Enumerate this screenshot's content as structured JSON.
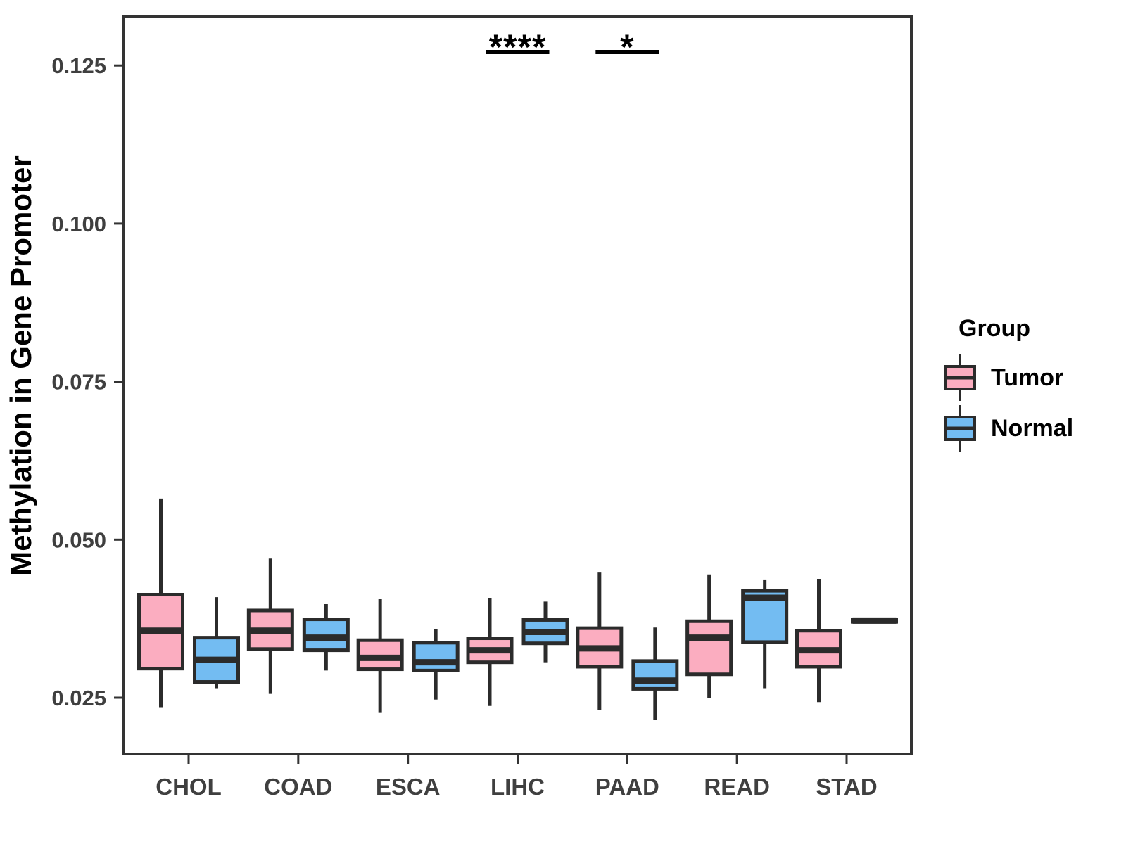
{
  "chart_data": {
    "type": "boxplot",
    "title": "",
    "xlabel": "",
    "ylabel": "Methylation in Gene Promoter",
    "legend_title": "Group",
    "legend_position": "right",
    "grid": false,
    "categories": [
      "CHOL",
      "COAD",
      "ESCA",
      "LIHC",
      "PAAD",
      "READ",
      "STAD"
    ],
    "y_ticks": [
      "0.025",
      "0.050",
      "0.075",
      "0.100",
      "0.125"
    ],
    "y_tick_values": [
      0.025,
      0.05,
      0.075,
      0.1,
      0.125
    ],
    "ylim": [
      0.0161,
      0.1327
    ],
    "groups": [
      {
        "name": "Tumor",
        "color": "#fbadc0"
      },
      {
        "name": "Normal",
        "color": "#73bcf2"
      }
    ],
    "series": [
      {
        "name": "Tumor",
        "boxes": [
          {
            "category": "CHOL",
            "low": 0.0235,
            "q1": 0.0296,
            "median": 0.0356,
            "q3": 0.0413,
            "high": 0.0565
          },
          {
            "category": "COAD",
            "low": 0.0256,
            "q1": 0.0327,
            "median": 0.0356,
            "q3": 0.0388,
            "high": 0.047
          },
          {
            "category": "ESCA",
            "low": 0.0226,
            "q1": 0.0295,
            "median": 0.0313,
            "q3": 0.0341,
            "high": 0.0406
          },
          {
            "category": "LIHC",
            "low": 0.0237,
            "q1": 0.0306,
            "median": 0.0325,
            "q3": 0.0344,
            "high": 0.0408
          },
          {
            "category": "PAAD",
            "low": 0.023,
            "q1": 0.0299,
            "median": 0.0328,
            "q3": 0.036,
            "high": 0.0449
          },
          {
            "category": "READ",
            "low": 0.0249,
            "q1": 0.0287,
            "median": 0.0345,
            "q3": 0.0371,
            "high": 0.0445
          },
          {
            "category": "STAD",
            "low": 0.0243,
            "q1": 0.0299,
            "median": 0.0325,
            "q3": 0.0356,
            "high": 0.0438
          }
        ]
      },
      {
        "name": "Normal",
        "boxes": [
          {
            "category": "CHOL",
            "low": 0.0265,
            "q1": 0.0275,
            "median": 0.031,
            "q3": 0.0345,
            "high": 0.0409
          },
          {
            "category": "COAD",
            "low": 0.0293,
            "q1": 0.0325,
            "median": 0.0345,
            "q3": 0.0374,
            "high": 0.0398
          },
          {
            "category": "ESCA",
            "low": 0.0247,
            "q1": 0.0293,
            "median": 0.0306,
            "q3": 0.0337,
            "high": 0.0358
          },
          {
            "category": "LIHC",
            "low": 0.0306,
            "q1": 0.0336,
            "median": 0.0354,
            "q3": 0.0373,
            "high": 0.0402
          },
          {
            "category": "PAAD",
            "low": 0.0215,
            "q1": 0.0264,
            "median": 0.0277,
            "q3": 0.0308,
            "high": 0.0361
          },
          {
            "category": "READ",
            "low": 0.0265,
            "q1": 0.0338,
            "median": 0.0408,
            "q3": 0.0419,
            "high": 0.0437
          },
          {
            "category": "STAD",
            "low": 0.0368,
            "q1": 0.037,
            "median": 0.0372,
            "q3": 0.0374,
            "high": 0.0376
          }
        ]
      }
    ],
    "annotations": [
      {
        "category": "LIHC",
        "label": "****"
      },
      {
        "category": "PAAD",
        "label": "*"
      }
    ],
    "colors": {
      "box_stroke": "#2b2b2b",
      "panel_border": "#333333",
      "axis_text": "#3f3f3f",
      "annotation": "#000000"
    }
  }
}
